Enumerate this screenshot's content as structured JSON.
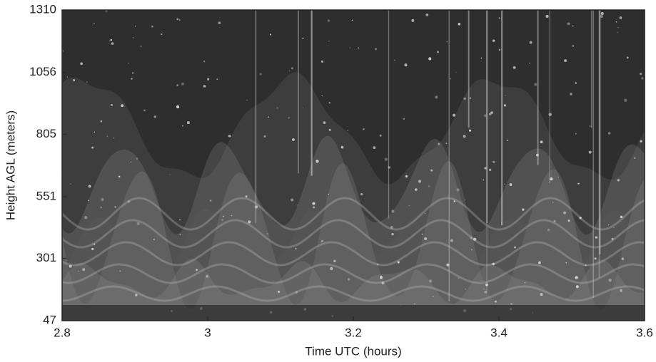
{
  "chart_data": {
    "type": "image",
    "x_label": "Time UTC (hours)",
    "y_label": "Height AGL (meters)",
    "xlim": [
      2.8,
      3.6
    ],
    "xticks": [
      2.8,
      3,
      3.2,
      3.4,
      3.6
    ],
    "ylim": [
      47,
      1310
    ],
    "yticks": [
      47,
      301,
      551,
      805,
      1056,
      1310
    ]
  }
}
